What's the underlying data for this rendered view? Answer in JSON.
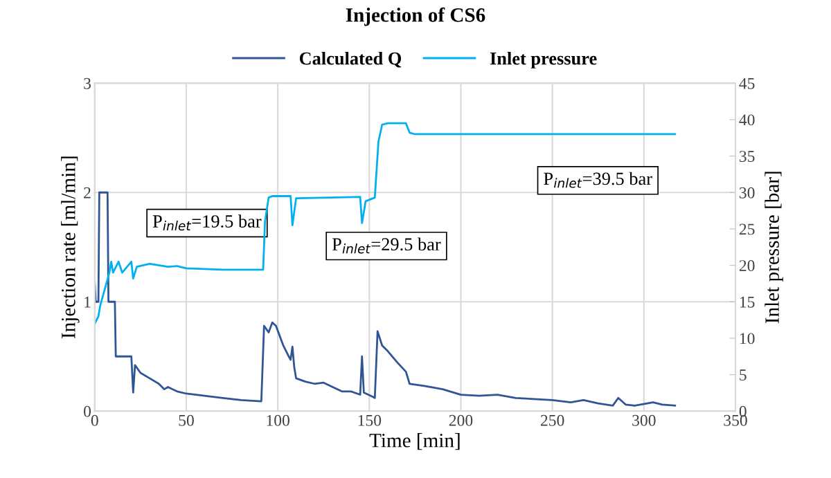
{
  "chart_data": {
    "type": "line",
    "title": "Injection of CS6",
    "xlabel": "Time [min]",
    "ylabel": "Injection rate [ml/min]",
    "y2label": "Inlet pressure [bar]",
    "xlim": [
      0,
      350
    ],
    "xticks": [
      0,
      50,
      100,
      150,
      200,
      250,
      300,
      350
    ],
    "ylim": [
      0,
      3
    ],
    "yticks": [
      0,
      1,
      2,
      3
    ],
    "y2lim": [
      0,
      45
    ],
    "y2ticks": [
      0,
      5,
      10,
      15,
      20,
      25,
      30,
      35,
      40,
      45
    ],
    "grid": true,
    "legend": "top",
    "marker": "none",
    "line_style": "solid",
    "series": [
      {
        "name": "Calculated Q",
        "color": "#2f5597",
        "x": [
          0,
          0.5,
          2,
          2.5,
          7,
          7.5,
          11,
          11.5,
          20,
          21,
          22,
          25,
          30,
          35,
          38,
          40,
          45,
          50,
          60,
          70,
          80,
          91,
          92.5,
          95,
          97,
          99,
          103,
          106,
          107,
          108,
          109,
          110,
          115,
          120,
          125,
          130,
          135,
          140,
          145,
          146,
          147,
          152,
          153,
          154.5,
          157,
          160,
          165,
          170,
          172,
          180,
          190,
          200,
          210,
          220,
          230,
          240,
          250,
          260,
          267,
          275,
          283,
          286,
          290,
          295,
          305,
          310,
          317
        ],
        "values": [
          1.18,
          1.0,
          1.0,
          2.0,
          2.0,
          1.0,
          1.0,
          0.5,
          0.5,
          0.17,
          0.42,
          0.35,
          0.3,
          0.25,
          0.2,
          0.22,
          0.18,
          0.16,
          0.14,
          0.12,
          0.1,
          0.09,
          0.78,
          0.72,
          0.81,
          0.78,
          0.6,
          0.5,
          0.47,
          0.59,
          0.4,
          0.3,
          0.27,
          0.25,
          0.26,
          0.22,
          0.18,
          0.18,
          0.15,
          0.5,
          0.17,
          0.13,
          0.12,
          0.73,
          0.6,
          0.55,
          0.45,
          0.36,
          0.25,
          0.23,
          0.2,
          0.15,
          0.14,
          0.15,
          0.12,
          0.11,
          0.1,
          0.08,
          0.1,
          0.07,
          0.05,
          0.12,
          0.06,
          0.05,
          0.08,
          0.06,
          0.05
        ]
      },
      {
        "name": "Inlet pressure",
        "color": "#00b0f0",
        "axis": "y2",
        "x": [
          0,
          2,
          3,
          8,
          9,
          10,
          13,
          15,
          20,
          21,
          23,
          30,
          40,
          45,
          50,
          60,
          70,
          92,
          93,
          95,
          97,
          107,
          108,
          110,
          145,
          146,
          148,
          153,
          155,
          157,
          160,
          170,
          172,
          175,
          317
        ],
        "values": [
          12,
          13,
          14.5,
          19,
          20.5,
          19,
          20.5,
          19,
          20.5,
          18.2,
          19.8,
          20.2,
          19.8,
          19.9,
          19.6,
          19.5,
          19.4,
          19.4,
          26,
          29.3,
          29.5,
          29.5,
          25.5,
          29.2,
          29.4,
          25.8,
          28.8,
          29.3,
          37,
          39.3,
          39.5,
          39.5,
          38.2,
          38,
          38
        ]
      }
    ],
    "annotations": [
      "P$_{inlet}$=19.5 bar",
      "P$_{inlet}$=29.5 bar",
      "P$_{inlet}$=39.5 bar"
    ]
  }
}
